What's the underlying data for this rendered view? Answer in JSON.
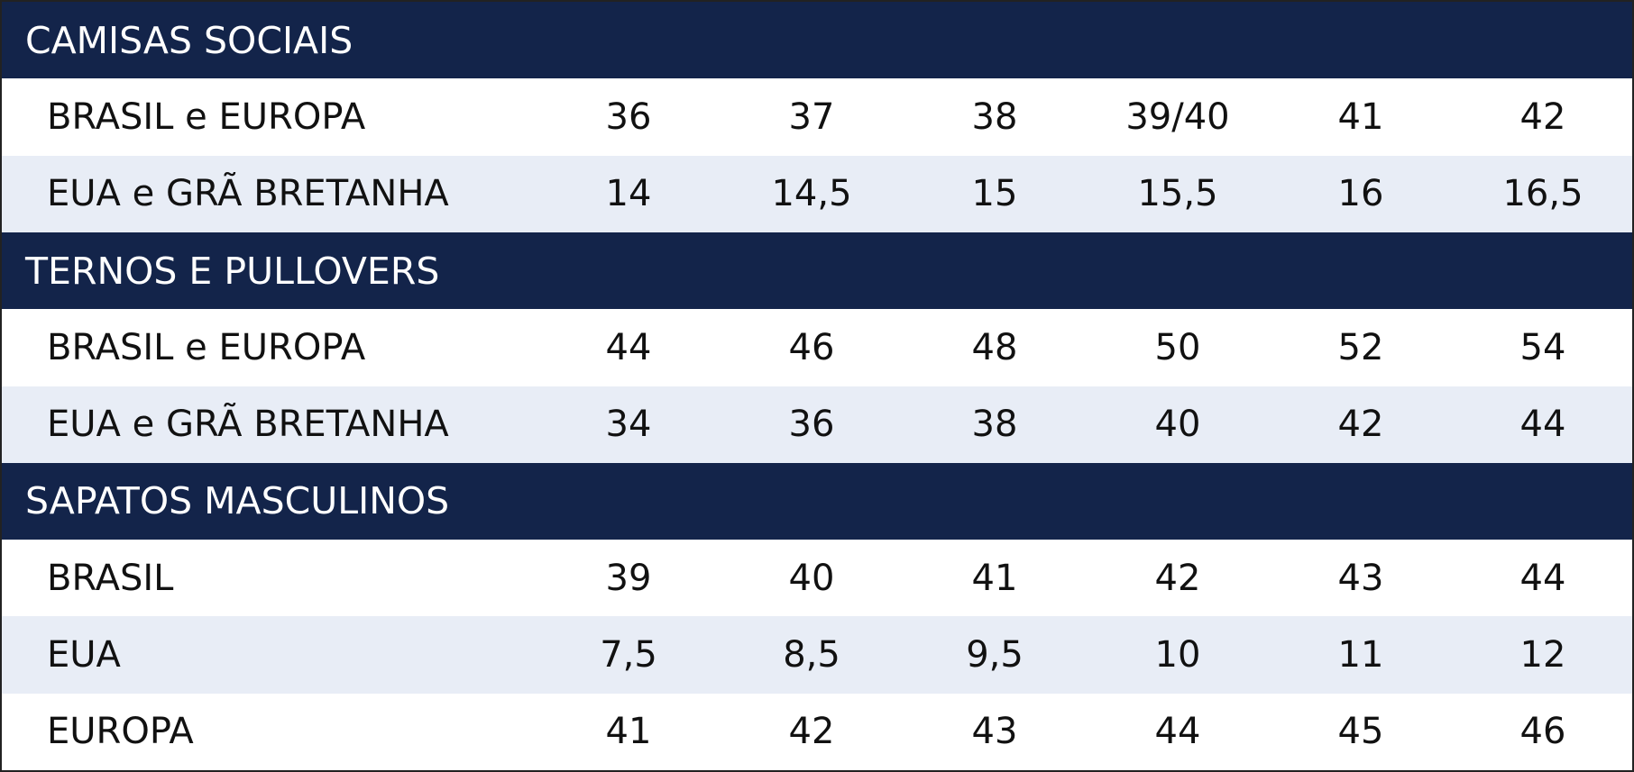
{
  "sections": [
    {
      "title": "CAMISAS SOCIAIS",
      "rows": [
        {
          "label": "BRASIL e EUROPA",
          "cells": [
            "36",
            "37",
            "38",
            "39/40",
            "41",
            "42"
          ]
        },
        {
          "label": "EUA e GRÃ BRETANHA",
          "cells": [
            "14",
            "14,5",
            "15",
            "15,5",
            "16",
            "16,5"
          ]
        }
      ]
    },
    {
      "title": "TERNOS E PULLOVERS",
      "rows": [
        {
          "label": "BRASIL e EUROPA",
          "cells": [
            "44",
            "46",
            "48",
            "50",
            "52",
            "54"
          ]
        },
        {
          "label": "EUA e GRÃ BRETANHA",
          "cells": [
            "34",
            "36",
            "38",
            "40",
            "42",
            "44"
          ]
        }
      ]
    },
    {
      "title": "SAPATOS MASCULINOS",
      "rows": [
        {
          "label": "BRASIL",
          "cells": [
            "39",
            "40",
            "41",
            "42",
            "43",
            "44"
          ]
        },
        {
          "label": "EUA",
          "cells": [
            "7,5",
            "8,5",
            "9,5",
            "10",
            "11",
            "12"
          ]
        },
        {
          "label": "EUROPA",
          "cells": [
            "41",
            "42",
            "43",
            "44",
            "45",
            "46"
          ]
        }
      ]
    }
  ]
}
